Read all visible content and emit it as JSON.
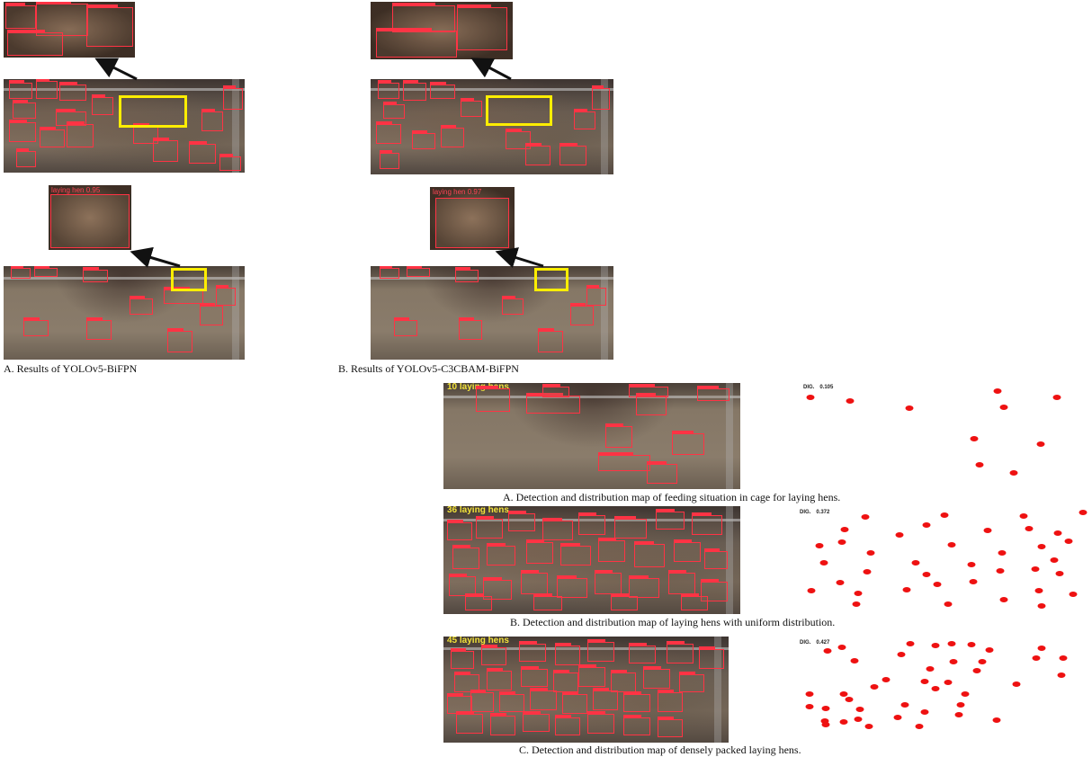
{
  "top_panel": {
    "caption_a": {
      "letter": "A",
      "text": ". Results of YOLOv5-BiFPN"
    },
    "caption_b": {
      "letter": "B",
      "text": ". Results of YOLOv5-C3CBAM-BiFPN"
    },
    "crop_labels": [
      "laying hen 0.95",
      "laying hen 0.97"
    ]
  },
  "bottom_panel": {
    "rows": [
      {
        "count_label": "10 laying hens",
        "dig_label": "DIG.",
        "dig_value": "0.105",
        "caption": "A. Detection and distribution map of feeding situation in cage for laying hens."
      },
      {
        "count_label": "36 laying hens",
        "dig_label": "DIG.",
        "dig_value": "0.372",
        "caption": "B. Detection and distribution map of laying hens with uniform distribution."
      },
      {
        "count_label": "45 laying hens",
        "dig_label": "DIG.",
        "dig_value": "0.427",
        "caption": "C. Detection and distribution map of densely packed laying hens."
      }
    ]
  },
  "colors": {
    "bbox": "#ff3344",
    "highlight": "#ffee00",
    "dot": "#ee1111",
    "count_text": "#f2e23a"
  }
}
